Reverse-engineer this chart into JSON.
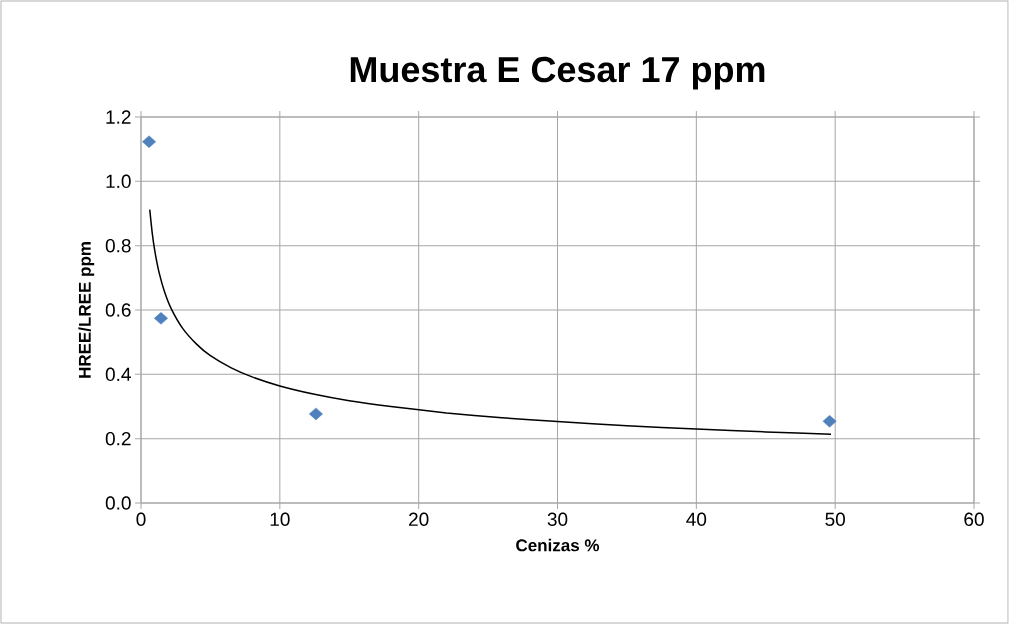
{
  "chart_data": {
    "type": "scatter",
    "title": "Muestra E Cesar 17 ppm",
    "xlabel": "Cenizas %",
    "ylabel": "HREE/LREE ppm",
    "xlim": [
      0,
      60
    ],
    "ylim": [
      0,
      1.2
    ],
    "xticks": [
      0,
      10,
      20,
      30,
      40,
      50,
      60
    ],
    "yticks": [
      {
        "value": 0,
        "label": "0.0"
      },
      {
        "value": 0.2,
        "label": "0.2"
      },
      {
        "value": 0.4,
        "label": "0.4"
      },
      {
        "value": 0.6,
        "label": "0.6"
      },
      {
        "value": 0.8,
        "label": "0.8"
      },
      {
        "value": 1.0,
        "label": "1.0"
      },
      {
        "value": 1.2,
        "label": "1.2"
      }
    ],
    "grid": true,
    "series": [
      {
        "color": "#4f81bd",
        "marker": "diamond",
        "x": [
          0.58,
          1.44,
          12.6,
          49.6
        ],
        "values": [
          1.123,
          0.574,
          0.277,
          0.254
        ]
      },
      {
        "type": "line",
        "color": "#000000",
        "marker": "none",
        "line_style": "solid",
        "x": [
          0.63,
          0.8,
          1,
          1.3,
          1.7,
          2.2,
          3,
          4,
          5,
          6.5,
          8,
          10,
          12.5,
          15,
          18,
          22,
          26,
          30,
          35,
          40,
          45,
          49.7
        ],
        "values": [
          0.912,
          0.842,
          0.782,
          0.717,
          0.656,
          0.602,
          0.543,
          0.494,
          0.458,
          0.42,
          0.392,
          0.364,
          0.338,
          0.318,
          0.3,
          0.28,
          0.265,
          0.253,
          0.24,
          0.23,
          0.221,
          0.214
        ]
      }
    ]
  }
}
